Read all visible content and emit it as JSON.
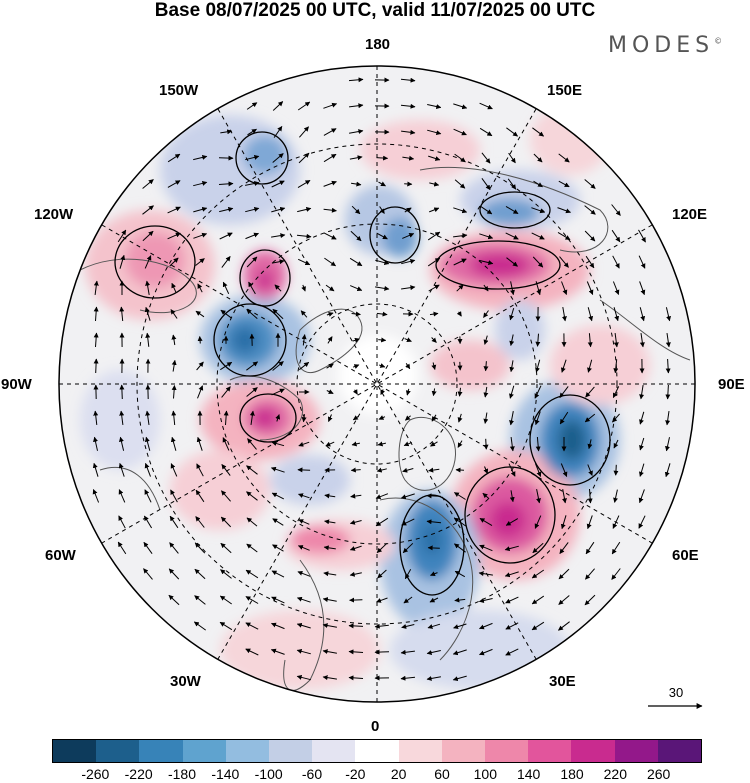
{
  "title": "Base 08/07/2025 00 UTC, valid 11/07/2025 00 UTC",
  "brand": "MODES",
  "brand_mark": "©",
  "longitude_labels": {
    "lon_180": "180",
    "lon_150E": "150E",
    "lon_120E": "120E",
    "lon_90E": "90E",
    "lon_60E": "60E",
    "lon_30E": "30E",
    "lon_0": "0",
    "lon_30W": "30W",
    "lon_60W": "60W",
    "lon_90W": "90W",
    "lon_120W": "120W",
    "lon_150W": "150W"
  },
  "reference_vector": {
    "label": "30"
  },
  "colorbar": {
    "colors": [
      "#0d3b5c",
      "#1d5f8c",
      "#3783b8",
      "#5fa3cf",
      "#93bde0",
      "#c3cfe6",
      "#e4e4f2",
      "#ffffff",
      "#f8d8dc",
      "#f4b3c0",
      "#ee87aa",
      "#e2559c",
      "#c92b8f",
      "#93188a",
      "#5a1678"
    ],
    "tick_labels": [
      "-260",
      "-220",
      "-180",
      "-140",
      "-100",
      "-60",
      "-20",
      "20",
      "60",
      "100",
      "140",
      "180",
      "220",
      "260"
    ]
  }
}
